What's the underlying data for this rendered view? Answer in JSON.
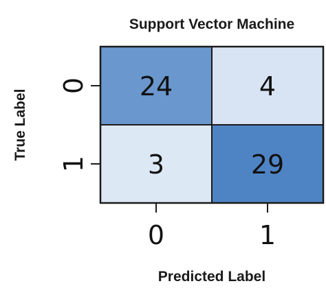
{
  "chart_data": {
    "type": "heatmap",
    "title": "Support Vector Machine",
    "xlabel": "Predicted Label",
    "ylabel": "True Label",
    "x_categories": [
      "0",
      "1"
    ],
    "y_categories": [
      "0",
      "1"
    ],
    "values": [
      [
        24,
        4
      ],
      [
        3,
        29
      ]
    ],
    "colorscale": [
      "#dde8f5",
      "#4f84c4"
    ],
    "grid": true,
    "legend": "none"
  }
}
